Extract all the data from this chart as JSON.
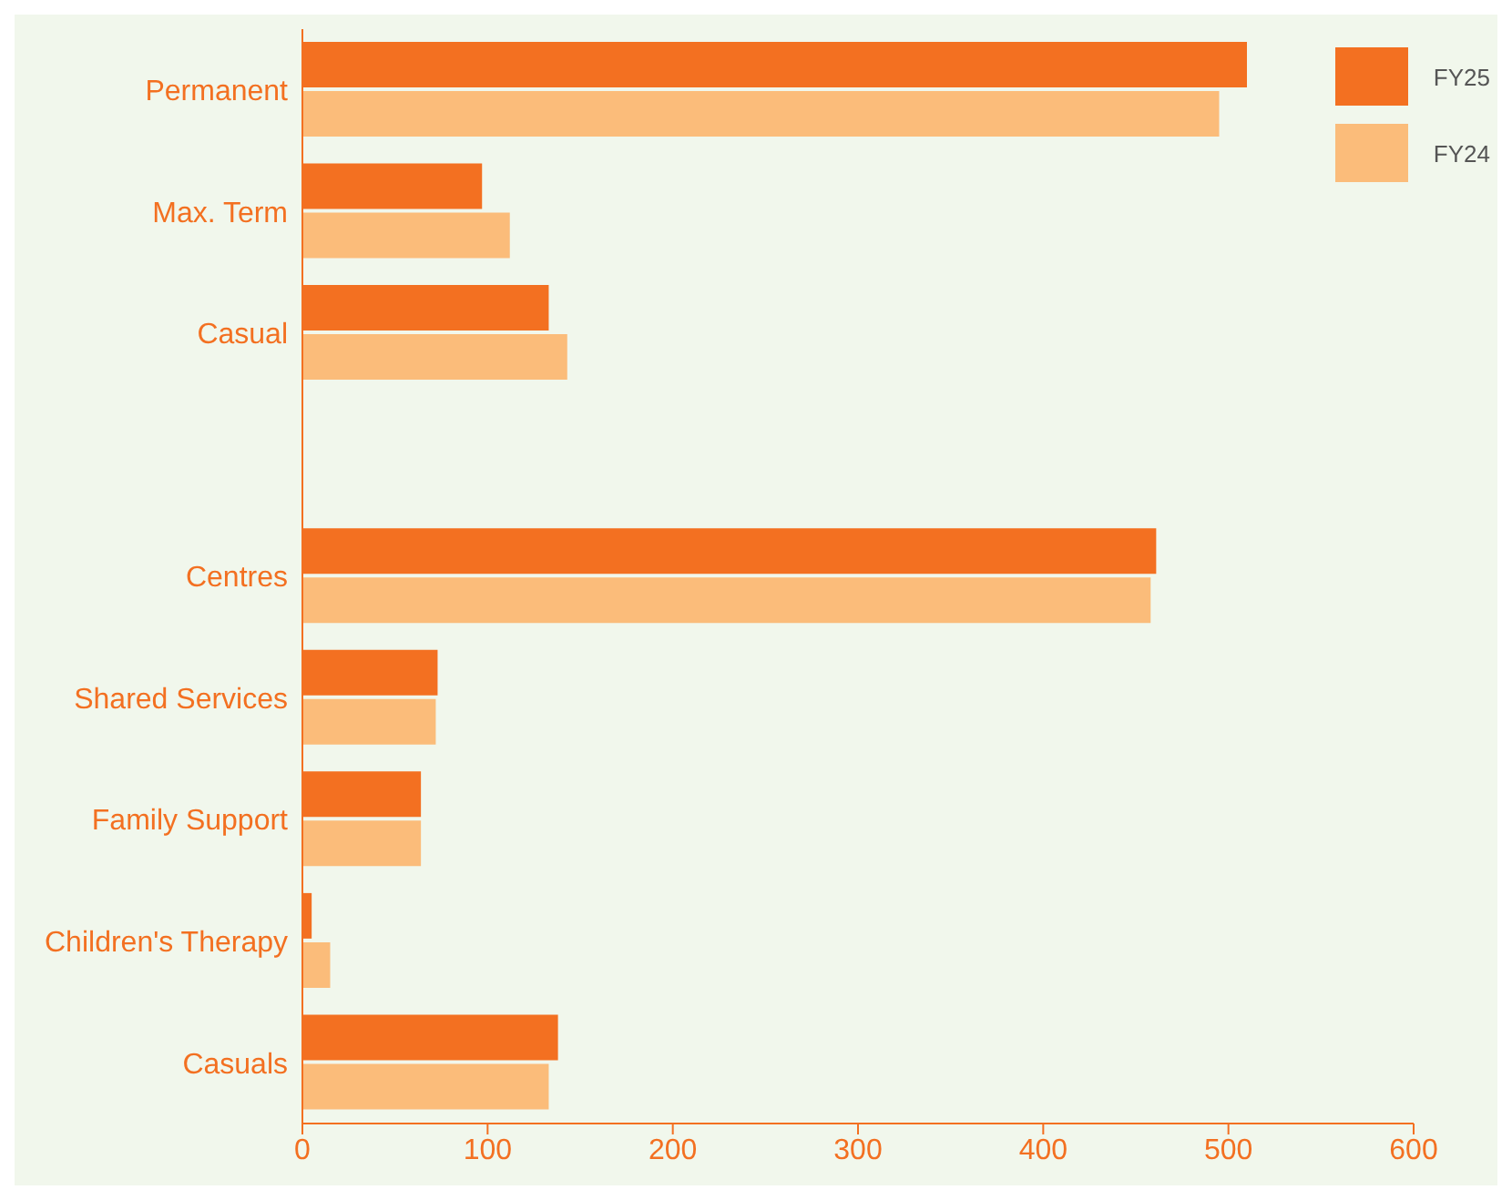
{
  "chart_data": {
    "type": "bar",
    "orientation": "horizontal",
    "categories": [
      "Permanent",
      "Max. Term",
      "Casual",
      null,
      "Centres",
      "Shared Services",
      "Family Support",
      "Children's Therapy",
      "Casuals"
    ],
    "series": [
      {
        "name": "FY25",
        "color": "#f37021",
        "values": [
          510,
          97,
          133,
          null,
          461,
          73,
          64,
          5,
          138
        ]
      },
      {
        "name": "FY24",
        "color": "#fbbc7a",
        "values": [
          495,
          112,
          143,
          null,
          458,
          72,
          64,
          15,
          133
        ]
      }
    ],
    "xlim": [
      0,
      600
    ],
    "xticks": [
      0,
      100,
      200,
      300,
      400,
      500,
      600
    ],
    "grid": false,
    "legend": "top right"
  }
}
